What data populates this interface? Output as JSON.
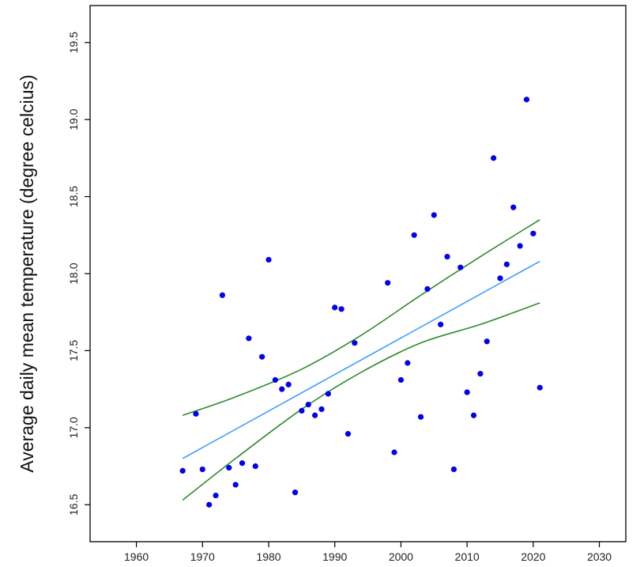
{
  "chart_data": {
    "type": "scatter",
    "ylabel": "Average daily mean temperature (degree celcius)",
    "xlabel": "",
    "xlim": [
      1953,
      2034
    ],
    "ylim": [
      16.26,
      19.74
    ],
    "x_ticks": [
      "1960",
      "1970",
      "1980",
      "1990",
      "2000",
      "2010",
      "2020",
      "2030"
    ],
    "y_ticks": [
      "16.5",
      "17.0",
      "17.5",
      "18.0",
      "18.5",
      "19.0",
      "19.5"
    ],
    "grid": false,
    "colors": {
      "points": "#0000ee",
      "fit": "#3399ff",
      "band": "#2e8b2e"
    },
    "points": [
      [
        1967,
        16.72
      ],
      [
        1969,
        17.09
      ],
      [
        1970,
        16.73
      ],
      [
        1971,
        16.5
      ],
      [
        1972,
        16.56
      ],
      [
        1973,
        17.86
      ],
      [
        1974,
        16.74
      ],
      [
        1975,
        16.63
      ],
      [
        1976,
        16.77
      ],
      [
        1977,
        17.58
      ],
      [
        1978,
        16.75
      ],
      [
        1979,
        17.46
      ],
      [
        1980,
        18.09
      ],
      [
        1981,
        17.31
      ],
      [
        1982,
        17.25
      ],
      [
        1983,
        17.28
      ],
      [
        1984,
        16.58
      ],
      [
        1985,
        17.11
      ],
      [
        1986,
        17.15
      ],
      [
        1987,
        17.08
      ],
      [
        1988,
        17.12
      ],
      [
        1989,
        17.22
      ],
      [
        1990,
        17.78
      ],
      [
        1991,
        17.77
      ],
      [
        1992,
        16.96
      ],
      [
        1993,
        17.55
      ],
      [
        1998,
        17.94
      ],
      [
        1999,
        16.84
      ],
      [
        2000,
        17.31
      ],
      [
        2001,
        17.42
      ],
      [
        2002,
        18.25
      ],
      [
        2003,
        17.07
      ],
      [
        2004,
        17.9
      ],
      [
        2005,
        18.38
      ],
      [
        2006,
        17.67
      ],
      [
        2007,
        18.11
      ],
      [
        2008,
        16.73
      ],
      [
        2009,
        18.04
      ],
      [
        2010,
        17.23
      ],
      [
        2011,
        17.08
      ],
      [
        2012,
        17.35
      ],
      [
        2013,
        17.56
      ],
      [
        2014,
        18.75
      ],
      [
        2015,
        17.97
      ],
      [
        2016,
        18.06
      ],
      [
        2017,
        18.43
      ],
      [
        2018,
        18.18
      ],
      [
        2019,
        19.13
      ],
      [
        2020,
        18.26
      ],
      [
        2021,
        17.26
      ]
    ],
    "fit_line": {
      "x": [
        1967,
        2021
      ],
      "y": [
        16.8,
        18.08
      ]
    },
    "upper_band": {
      "x": [
        1967,
        1975,
        1985,
        1994,
        2003,
        2012,
        2021
      ],
      "y": [
        17.08,
        17.2,
        17.38,
        17.6,
        17.86,
        18.11,
        18.35
      ]
    },
    "lower_band": {
      "x": [
        1967,
        1975,
        1985,
        1994,
        2003,
        2012,
        2021
      ],
      "y": [
        16.53,
        16.8,
        17.12,
        17.36,
        17.55,
        17.67,
        17.81
      ]
    }
  }
}
